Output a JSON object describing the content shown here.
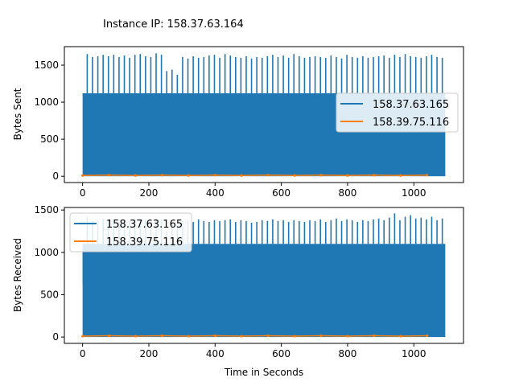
{
  "title": "Instance IP: 158.37.63.164",
  "colors": {
    "series_1": "#1f77b4",
    "series_2": "#ff7f0e",
    "axes": "#000000",
    "background": "#ffffff"
  },
  "chart_data": [
    {
      "type": "line",
      "ylabel": "Bytes Sent",
      "xlabel": "",
      "xlim": [
        -55,
        1150
      ],
      "ylim": [
        -85,
        1750
      ],
      "xticks": [
        0,
        200,
        400,
        600,
        800,
        1000
      ],
      "yticks": [
        0,
        500,
        1000,
        1500
      ],
      "legend": "center-right",
      "series": [
        {
          "name": "158.37.63.165",
          "color": "#1f77b4",
          "x_range": [
            0,
            1095
          ],
          "baseline_low": 0,
          "band_high": 1120,
          "spike_x": [
            2,
            14,
            30,
            46,
            62,
            78,
            94,
            110,
            126,
            142,
            158,
            174,
            190,
            206,
            222,
            238,
            254,
            270,
            286,
            302,
            318,
            334,
            350,
            366,
            382,
            398,
            414,
            430,
            446,
            462,
            478,
            494,
            510,
            526,
            542,
            558,
            574,
            590,
            606,
            622,
            638,
            654,
            670,
            686,
            702,
            718,
            734,
            750,
            766,
            782,
            798,
            814,
            830,
            846,
            862,
            878,
            894,
            910,
            926,
            942,
            958,
            974,
            990,
            1006,
            1022,
            1038,
            1054,
            1070,
            1086
          ],
          "spike_y": [
            1100,
            1650,
            1610,
            1620,
            1640,
            1620,
            1640,
            1610,
            1630,
            1600,
            1640,
            1650,
            1620,
            1610,
            1660,
            1640,
            1420,
            1440,
            1370,
            1610,
            1590,
            1620,
            1600,
            1610,
            1630,
            1640,
            1600,
            1650,
            1630,
            1610,
            1600,
            1620,
            1590,
            1610,
            1600,
            1620,
            1640,
            1610,
            1630,
            1600,
            1650,
            1620,
            1600,
            1610,
            1620,
            1610,
            1600,
            1630,
            1610,
            1590,
            1640,
            1610,
            1600,
            1620,
            1600,
            1610,
            1620,
            1630,
            1600,
            1640,
            1610,
            1650,
            1620,
            1610,
            1600,
            1620,
            1640,
            1610,
            1600
          ]
        },
        {
          "name": "158.39.75.116",
          "color": "#ff7f0e",
          "x": [
            0,
            80,
            160,
            240,
            320,
            400,
            480,
            560,
            640,
            720,
            800,
            880,
            960,
            1040
          ],
          "y": [
            10,
            15,
            10,
            15,
            10,
            15,
            10,
            15,
            10,
            15,
            10,
            15,
            10,
            15
          ]
        }
      ]
    },
    {
      "type": "line",
      "ylabel": "Bytes Received",
      "xlabel": "Time in Seconds",
      "xlim": [
        -55,
        1150
      ],
      "ylim": [
        -75,
        1530
      ],
      "xticks": [
        0,
        200,
        400,
        600,
        800,
        1000
      ],
      "yticks": [
        0,
        500,
        1000,
        1500
      ],
      "legend": "upper-left",
      "series": [
        {
          "name": "158.37.63.165",
          "color": "#1f77b4",
          "x_range": [
            0,
            1095
          ],
          "baseline_low": 0,
          "band_high": 1100,
          "spike_x": [
            2,
            14,
            30,
            46,
            62,
            78,
            94,
            110,
            126,
            142,
            158,
            174,
            190,
            206,
            222,
            238,
            254,
            270,
            286,
            302,
            318,
            334,
            350,
            366,
            382,
            398,
            414,
            430,
            446,
            462,
            478,
            494,
            510,
            526,
            542,
            558,
            574,
            590,
            606,
            622,
            638,
            654,
            670,
            686,
            702,
            718,
            734,
            750,
            766,
            782,
            798,
            814,
            830,
            846,
            862,
            878,
            894,
            910,
            926,
            942,
            958,
            974,
            990,
            1006,
            1022,
            1038,
            1054,
            1070,
            1086
          ],
          "spike_y": [
            620,
            1420,
            1370,
            1380,
            1400,
            1370,
            1390,
            1360,
            1380,
            1370,
            1400,
            1380,
            1390,
            1370,
            1400,
            1380,
            1250,
            1360,
            1320,
            1370,
            1380,
            1360,
            1390,
            1370,
            1360,
            1380,
            1370,
            1380,
            1390,
            1360,
            1380,
            1370,
            1350,
            1360,
            1380,
            1370,
            1390,
            1370,
            1380,
            1360,
            1380,
            1370,
            1360,
            1380,
            1370,
            1390,
            1360,
            1380,
            1400,
            1370,
            1390,
            1380,
            1360,
            1380,
            1370,
            1390,
            1400,
            1380,
            1410,
            1460,
            1380,
            1420,
            1440,
            1400,
            1410,
            1390,
            1420,
            1380,
            1400
          ]
        },
        {
          "name": "158.39.75.116",
          "color": "#ff7f0e",
          "x": [
            0,
            80,
            160,
            240,
            320,
            400,
            480,
            560,
            640,
            720,
            800,
            880,
            960,
            1040
          ],
          "y": [
            10,
            15,
            10,
            15,
            10,
            15,
            10,
            15,
            10,
            15,
            10,
            15,
            10,
            15
          ]
        }
      ]
    }
  ]
}
